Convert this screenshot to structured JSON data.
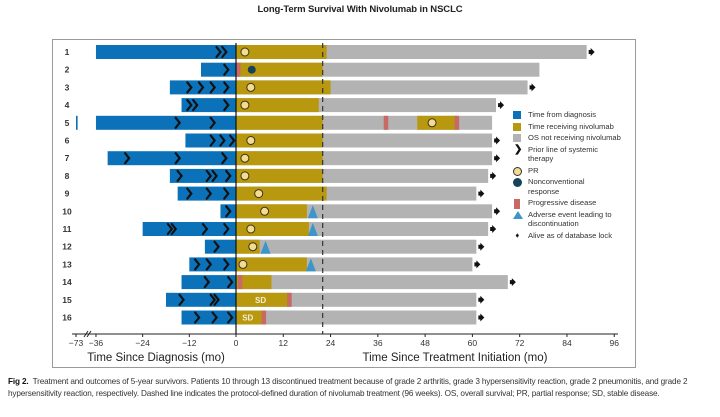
{
  "title": "Long-Term Survival With Nivolumab in NSCLC",
  "colors": {
    "diagnosis": "#0b72b9",
    "nivolumab": "#b8980f",
    "os": "#b3b3b3",
    "pr": "#f3dc8e",
    "nonconventional": "#16425b",
    "progressive": "#c86a63",
    "adverse": "#3d95c9",
    "alive": "#111111"
  },
  "chart_data": {
    "type": "bar",
    "subtype": "swimmer-plot",
    "title": "Long-Term Survival With Nivolumab in NSCLC",
    "xlabel_left": "Time Since Diagnosis (mo)",
    "xlabel_right": "Time Since Treatment Initiation (mo)",
    "x_ticks_left": [
      "-73",
      "-36",
      "-24",
      "-12",
      "0"
    ],
    "x_ticks_right": [
      "12",
      "24",
      "36",
      "48",
      "60",
      "72",
      "84",
      "96"
    ],
    "xlim_left": [
      -73,
      0
    ],
    "xlim_right": [
      0,
      96
    ],
    "axis_break": "between -73 and -36",
    "protocol_duration_line": 22,
    "legend_position": "right",
    "legend": [
      {
        "key": "diagnosis",
        "label": "Time from diagnosis",
        "shape": "square"
      },
      {
        "key": "nivolumab",
        "label": "Time receiving nivolumab",
        "shape": "square"
      },
      {
        "key": "os",
        "label": "OS not receiving nivolumab",
        "shape": "square"
      },
      {
        "key": "prior",
        "label": "Prior line of systemic therapy",
        "shape": "chevron"
      },
      {
        "key": "pr",
        "label": "PR",
        "shape": "circle"
      },
      {
        "key": "nonconventional",
        "label": "Nonconventional response",
        "shape": "circle"
      },
      {
        "key": "progressive",
        "label": "Progressive disease",
        "shape": "rect"
      },
      {
        "key": "adverse",
        "label": "Adverse event leading to discontinuation",
        "shape": "triangle"
      },
      {
        "key": "alive",
        "label": "Alive as of database lock",
        "shape": "arrow"
      }
    ],
    "patients": [
      {
        "id": "1",
        "diag_start": -36,
        "prior_lines": [
          -4.5,
          -3
        ],
        "niv_segments": [
          [
            0,
            23
          ]
        ],
        "os_end": 89,
        "pr": 1.5,
        "alive": true
      },
      {
        "id": "2",
        "diag_start": -9,
        "prior_lines": [
          -2.5
        ],
        "niv_segments": [
          [
            0,
            22
          ]
        ],
        "os_end": 77,
        "pd": [
          0.5
        ],
        "nonconventional": 4,
        "alive": false
      },
      {
        "id": "3",
        "diag_start": -17,
        "prior_lines": [
          -12,
          -9,
          -6,
          -2.5
        ],
        "niv_segments": [
          [
            0,
            24
          ]
        ],
        "os_end": 74,
        "pr": 3,
        "alive": true
      },
      {
        "id": "4",
        "diag_start": -14,
        "prior_lines": [
          -12,
          -10.5,
          -2.5
        ],
        "niv_segments": [
          [
            0,
            21
          ]
        ],
        "os_end": 66,
        "pr": 1.5,
        "alive": true
      },
      {
        "id": "5",
        "diag_start": -36,
        "diag_early_segment": [
          -73,
          -70
        ],
        "prior_lines": [
          -15,
          -6
        ],
        "niv_segments": [
          [
            0,
            22
          ],
          [
            46,
            56
          ]
        ],
        "os_end": 65,
        "pd": [
          38,
          56
        ],
        "pr": 49,
        "alive": false
      },
      {
        "id": "6",
        "diag_start": -13,
        "prior_lines": [
          -6,
          -3.5,
          -1
        ],
        "niv_segments": [
          [
            0,
            22
          ]
        ],
        "os_end": 65,
        "pr": 3,
        "alive": true
      },
      {
        "id": "7",
        "diag_start": -33,
        "prior_lines": [
          -28,
          -15,
          -3
        ],
        "niv_segments": [
          [
            0,
            22
          ]
        ],
        "os_end": 65,
        "pr": 1.5,
        "alive": true
      },
      {
        "id": "8",
        "diag_start": -17,
        "prior_lines": [
          -14.5,
          -7,
          -5.5,
          -2
        ],
        "niv_segments": [
          [
            0,
            22
          ]
        ],
        "os_end": 64,
        "pr": 1.5,
        "alive": true
      },
      {
        "id": "9",
        "diag_start": -15,
        "prior_lines": [
          -12,
          -7,
          -2.5
        ],
        "niv_segments": [
          [
            0,
            23
          ]
        ],
        "os_end": 61,
        "pr": 5,
        "alive": true
      },
      {
        "id": "10",
        "diag_start": -4,
        "prior_lines": [
          -2
        ],
        "niv_segments": [
          [
            0,
            18
          ]
        ],
        "os_end": 65,
        "pr": 6.5,
        "ae": 19.5,
        "alive": true
      },
      {
        "id": "11",
        "diag_start": -24,
        "prior_lines": [
          -17,
          -16,
          -8,
          -2.5
        ],
        "niv_segments": [
          [
            0,
            18.5
          ]
        ],
        "os_end": 64,
        "pr": 3,
        "ae": 19.5,
        "alive": true
      },
      {
        "id": "12",
        "diag_start": -8,
        "prior_lines": [
          -5
        ],
        "niv_segments": [
          [
            0,
            6
          ]
        ],
        "os_end": 61,
        "pr": 3.5,
        "ae": 7.5,
        "alive": true
      },
      {
        "id": "13",
        "diag_start": -12,
        "prior_lines": [
          -10,
          -7,
          -2.5
        ],
        "niv_segments": [
          [
            0,
            18
          ]
        ],
        "os_end": 60,
        "pr": 1,
        "ae": 19,
        "alive": true
      },
      {
        "id": "14",
        "diag_start": -14,
        "prior_lines": [
          -7.5,
          -1.5
        ],
        "niv_segments": [
          [
            0,
            9
          ]
        ],
        "os_end": 69,
        "pd": [
          1
        ],
        "alive": true
      },
      {
        "id": "15",
        "diag_start": -18,
        "prior_lines": [
          -14,
          -6,
          -5
        ],
        "niv_segments": [
          [
            0,
            13.5
          ]
        ],
        "os_end": 61,
        "pd": [
          13.5
        ],
        "sd_label": "SD",
        "alive": true
      },
      {
        "id": "16",
        "diag_start": -14,
        "prior_lines": [
          -10,
          -5.5,
          -1.5
        ],
        "niv_segments": [
          [
            0,
            7
          ]
        ],
        "os_end": 61,
        "pd": [
          7
        ],
        "sd_label": "SD",
        "alive": true
      }
    ]
  },
  "legend_labels": [
    "Time from diagnosis",
    "Time receiving nivolumab",
    "OS not receiving nivolumab",
    "Prior line of systemic therapy",
    "PR",
    "Nonconventional response",
    "Progressive disease",
    "Adverse event leading to discontinuation",
    "Alive as of database lock"
  ],
  "caption": {
    "fig_label": "Fig 2.",
    "text": "Treatment and outcomes of 5-year survivors. Patients 10 through 13 discontinued treatment because of grade 2 arthritis, grade 3 hypersensitivity reaction, grade 2 pneumonitis, and grade 2 hypersensitivity reaction, respectively. Dashed line indicates the protocol-defined duration of nivolumab treatment (96 weeks). OS, overall survival; PR, partial response; SD, stable disease."
  }
}
